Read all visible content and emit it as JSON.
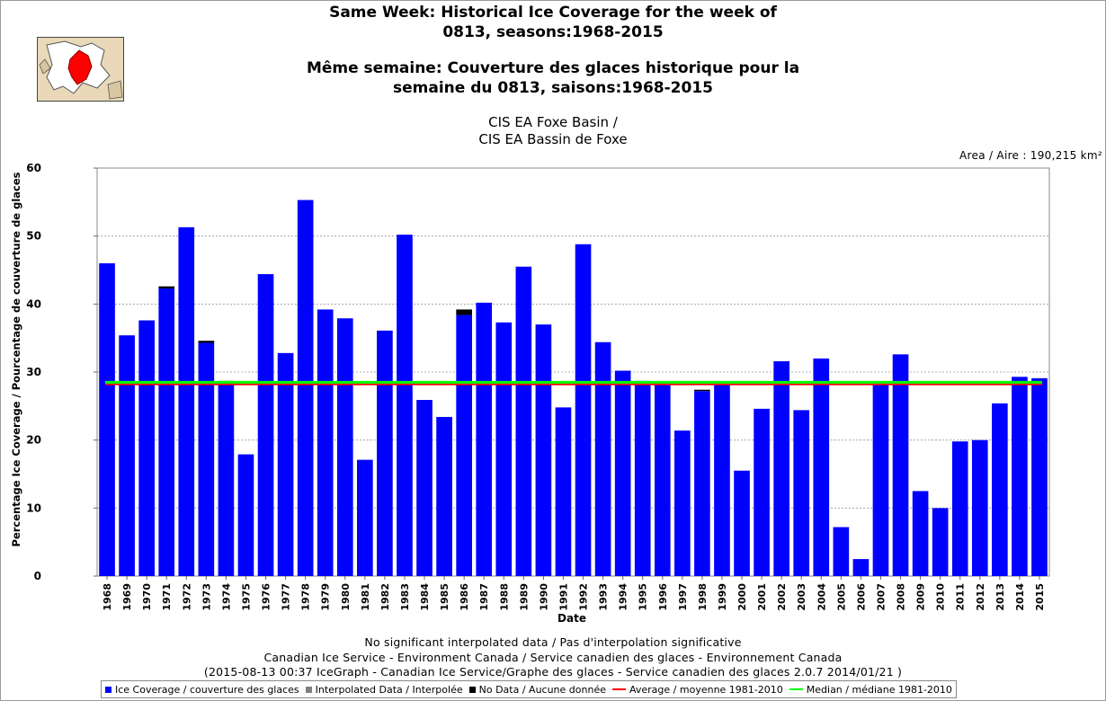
{
  "title": {
    "en_line1": "Same Week: Historical Ice Coverage for the week of",
    "en_line2": "0813, seasons:1968-2015",
    "fr_line1": "Même semaine: Couverture des glaces historique pour la",
    "fr_line2": "semaine du 0813, saisons:1968-2015"
  },
  "subtitle": {
    "line1": "CIS EA Foxe Basin /",
    "line2": "CIS EA Bassin de Foxe"
  },
  "area_note": "Area / Aire : 190,215 km²",
  "footer": {
    "line1": "No significant interpolated data / Pas d'interpolation significative",
    "line2": "Canadian Ice Service - Environment Canada / Service canadien des glaces - Environnement Canada",
    "line3": "(2015-08-13 00:37 IceGraph - Canadian Ice Service/Graphe des glaces - Service canadien des glaces 2.0.7 2014/01/21 )"
  },
  "legend": {
    "ice": "Ice Coverage / couverture des glaces",
    "interp": "Interpolated Data / Interpolée",
    "nodata": "No Data / Aucune donnée",
    "average": "Average / moyenne 1981-2010",
    "median": "Median / médiane 1981-2010"
  },
  "colors": {
    "ice": "#0000ff",
    "interp": "#808080",
    "nodata": "#000000",
    "average": "#ff0000",
    "median": "#00ff00",
    "grid": "#999999"
  },
  "minimap": {
    "land": "#e9d9b8",
    "highlight": "#ff0000",
    "water": "#ffffff"
  },
  "chart_data": {
    "type": "bar",
    "xlabel": "Date",
    "ylabel": "Percentage Ice Coverage / Pourcentage de couverture de glaces",
    "ylim": [
      0,
      60
    ],
    "yticks": [
      0,
      10,
      20,
      30,
      40,
      50,
      60
    ],
    "grid": true,
    "legend_position": "bottom",
    "categories": [
      "1968",
      "1969",
      "1970",
      "1971",
      "1972",
      "1973",
      "1974",
      "1975",
      "1976",
      "1977",
      "1978",
      "1979",
      "1980",
      "1981",
      "1982",
      "1983",
      "1984",
      "1985",
      "1986",
      "1987",
      "1988",
      "1989",
      "1990",
      "1991",
      "1992",
      "1993",
      "1994",
      "1995",
      "1996",
      "1997",
      "1998",
      "1999",
      "2000",
      "2001",
      "2002",
      "2003",
      "2004",
      "2005",
      "2006",
      "2007",
      "2008",
      "2009",
      "2010",
      "2011",
      "2012",
      "2013",
      "2014",
      "2015"
    ],
    "series": [
      {
        "name": "Ice Coverage / couverture des glaces",
        "values": [
          46.0,
          35.4,
          37.6,
          42.3,
          51.3,
          34.3,
          28.1,
          17.9,
          44.4,
          32.8,
          55.3,
          39.2,
          37.9,
          17.1,
          36.1,
          50.2,
          25.9,
          23.4,
          38.4,
          40.2,
          37.3,
          45.5,
          37.0,
          24.8,
          48.8,
          34.4,
          30.2,
          28.7,
          28.6,
          21.4,
          27.2,
          28.3,
          15.5,
          24.6,
          31.6,
          24.4,
          32.0,
          7.2,
          2.5,
          28.3,
          32.6,
          12.5,
          10.0,
          19.8,
          20.0,
          25.4,
          29.3,
          29.1
        ]
      },
      {
        "name": "No Data / Aucune donnée",
        "values": [
          0,
          0,
          0,
          0.3,
          0,
          0.3,
          0.6,
          0,
          0,
          0,
          0,
          0,
          0,
          0,
          0,
          0,
          0,
          0,
          0.8,
          0,
          0,
          0,
          0,
          0,
          0,
          0,
          0,
          0,
          0,
          0,
          0.2,
          0,
          0,
          0,
          0,
          0,
          0,
          0,
          0,
          0,
          0,
          0,
          0,
          0,
          0,
          0,
          0,
          0
        ]
      }
    ],
    "average_1981_2010": 28.2,
    "median_1981_2010": 28.5
  }
}
